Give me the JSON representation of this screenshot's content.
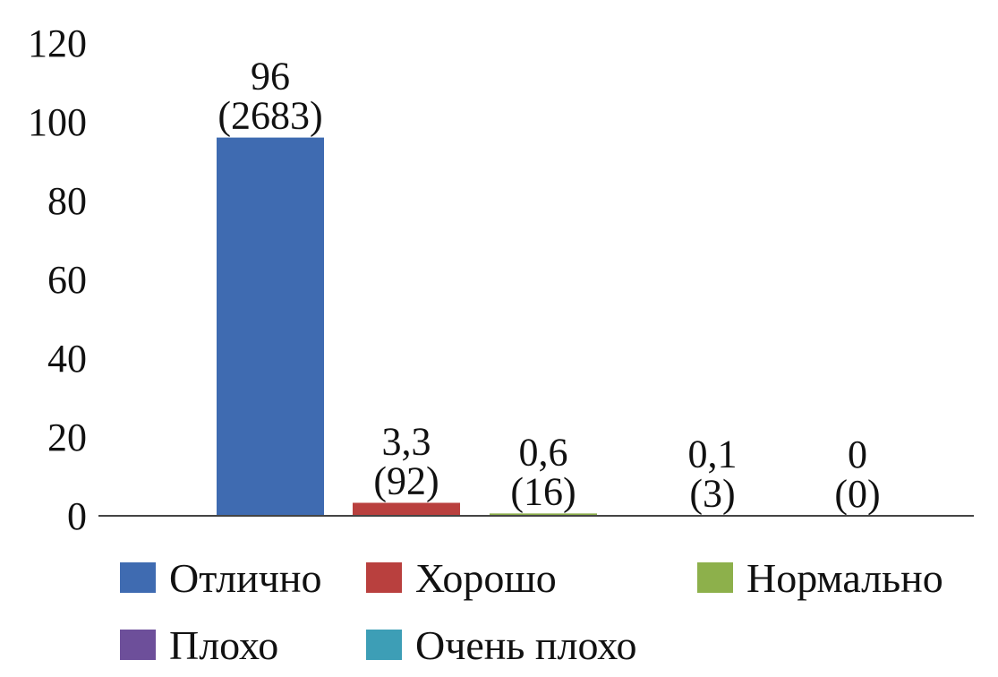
{
  "chart_data": {
    "type": "bar",
    "categories": [
      "Отлично",
      "Хорошо",
      "Нормально",
      "Плохо",
      "Очень плохо"
    ],
    "values": [
      96,
      3.3,
      0.6,
      0.1,
      0
    ],
    "data_labels": [
      {
        "value_text": "96",
        "count_text": "(2683)"
      },
      {
        "value_text": "3,3",
        "count_text": "(92)"
      },
      {
        "value_text": "0,6",
        "count_text": "(16)"
      },
      {
        "value_text": "0,1",
        "count_text": "(3)"
      },
      {
        "value_text": "0",
        "count_text": "(0)"
      }
    ],
    "colors": [
      "#3F6BB1",
      "#B9403E",
      "#8DB04B",
      "#6D4F9A",
      "#3D9EB6"
    ],
    "y_ticks": [
      "0",
      "20",
      "40",
      "60",
      "80",
      "100",
      "120"
    ],
    "ylim": [
      0,
      120
    ],
    "grid": false,
    "legend_position": "bottom",
    "title": "",
    "xlabel": "",
    "ylabel": ""
  }
}
